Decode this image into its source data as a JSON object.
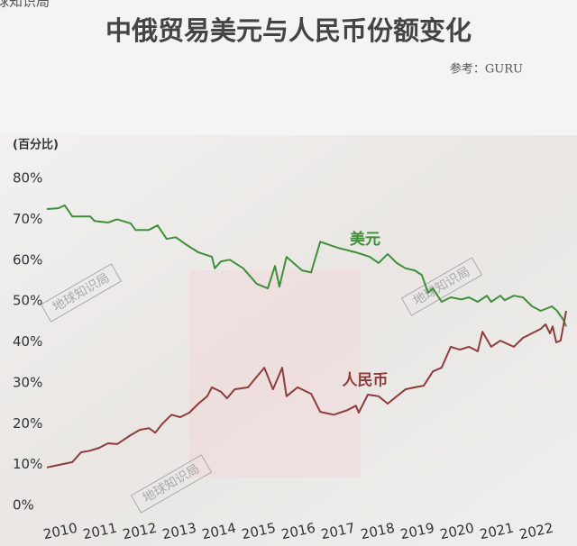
{
  "chart_data": {
    "type": "line",
    "title": "中俄贸易美元与人民币份额变化",
    "source": "参考：GURU",
    "y_label": "(百分比)",
    "watermark": "地球知识局",
    "xlim": [
      2009.6,
      2022.8
    ],
    "xticks": [
      2010,
      2011,
      2012,
      2013,
      2014,
      2015,
      2016,
      2017,
      2018,
      2019,
      2020,
      2021,
      2022
    ],
    "ylim": [
      0,
      80
    ],
    "yticks": [
      {
        "value": 0,
        "label": "0%"
      },
      {
        "value": 10,
        "label": "10%"
      },
      {
        "value": 20,
        "label": "20%"
      },
      {
        "value": 30,
        "label": "30%"
      },
      {
        "value": 40,
        "label": "40%"
      },
      {
        "value": 50,
        "label": "50%"
      },
      {
        "value": 60,
        "label": "60%"
      },
      {
        "value": 70,
        "label": "70%"
      },
      {
        "value": 80,
        "label": "80%"
      }
    ],
    "series": [
      {
        "name": "美元",
        "color": "#3f8f3a",
        "x": [
          2009.66,
          2009.95,
          2010.11,
          2010.3,
          2010.75,
          2010.86,
          2011.2,
          2011.43,
          2011.77,
          2011.89,
          2012.23,
          2012.45,
          2012.68,
          2012.91,
          2013.14,
          2013.48,
          2013.82,
          2013.89,
          2014.05,
          2014.27,
          2014.61,
          2014.95,
          2015.23,
          2015.41,
          2015.52,
          2015.7,
          2016.09,
          2016.32,
          2016.55,
          2017.0,
          2017.45,
          2017.8,
          2018.02,
          2018.25,
          2018.48,
          2018.7,
          2018.93,
          2019.11,
          2019.27,
          2019.39,
          2019.61,
          2019.84,
          2020.11,
          2020.3,
          2020.52,
          2020.75,
          2020.86,
          2021.09,
          2021.2,
          2021.43,
          2021.66,
          2021.89,
          2022.11,
          2022.39,
          2022.52,
          2022.68,
          2022.75
        ],
        "values": [
          72.5,
          72.7,
          73.4,
          70.7,
          70.7,
          69.6,
          69.2,
          70,
          69,
          67.4,
          67.4,
          68.5,
          65.2,
          65.6,
          64,
          61.9,
          60.8,
          58,
          59.7,
          60.1,
          58,
          54.2,
          53.1,
          58.6,
          53.5,
          60.8,
          57.5,
          57,
          64.5,
          63,
          61.9,
          60.8,
          59.3,
          61.5,
          59.3,
          58,
          57.5,
          56.4,
          52,
          53.1,
          49.8,
          50.9,
          50.4,
          50.9,
          49.8,
          51.3,
          49.8,
          51.3,
          50.2,
          51.3,
          50.9,
          48.7,
          47.6,
          48.7,
          47.6,
          45.4,
          43.8
        ]
      },
      {
        "name": "人民币",
        "color": "#8e3b3b",
        "x": [
          2009.66,
          2009.95,
          2010.3,
          2010.52,
          2010.75,
          2010.98,
          2011.2,
          2011.43,
          2011.77,
          2012.0,
          2012.23,
          2012.39,
          2012.57,
          2012.8,
          2013.02,
          2013.25,
          2013.48,
          2013.7,
          2013.82,
          2014.05,
          2014.2,
          2014.39,
          2014.73,
          2014.95,
          2015.14,
          2015.36,
          2015.59,
          2015.7,
          2015.98,
          2016.32,
          2016.55,
          2016.89,
          2017.23,
          2017.45,
          2017.52,
          2017.75,
          2018.02,
          2018.25,
          2018.48,
          2018.7,
          2018.93,
          2019.16,
          2019.39,
          2019.61,
          2019.84,
          2020.07,
          2020.3,
          2020.52,
          2020.64,
          2020.86,
          2021.09,
          2021.43,
          2021.66,
          2022.11,
          2022.23,
          2022.34,
          2022.41,
          2022.5,
          2022.61,
          2022.75
        ],
        "values": [
          9.3,
          9.9,
          10.6,
          13,
          13.4,
          14.1,
          15.2,
          15,
          17.2,
          18.5,
          18.9,
          17.8,
          20,
          22.2,
          21.6,
          22.7,
          24.9,
          26.7,
          28.9,
          27.8,
          26.2,
          28.4,
          28.9,
          31.5,
          33.7,
          28.4,
          33.7,
          26.7,
          28.9,
          27.3,
          22.9,
          22.2,
          23.3,
          24.4,
          22.7,
          27.1,
          26.7,
          24.9,
          26.7,
          28.4,
          28.9,
          29.3,
          32.8,
          33.7,
          38.8,
          38.1,
          38.8,
          37.7,
          42.5,
          38.8,
          40.3,
          38.8,
          41,
          43.2,
          44.3,
          42.1,
          43.8,
          39.9,
          40.3,
          47.6
        ]
      }
    ]
  }
}
